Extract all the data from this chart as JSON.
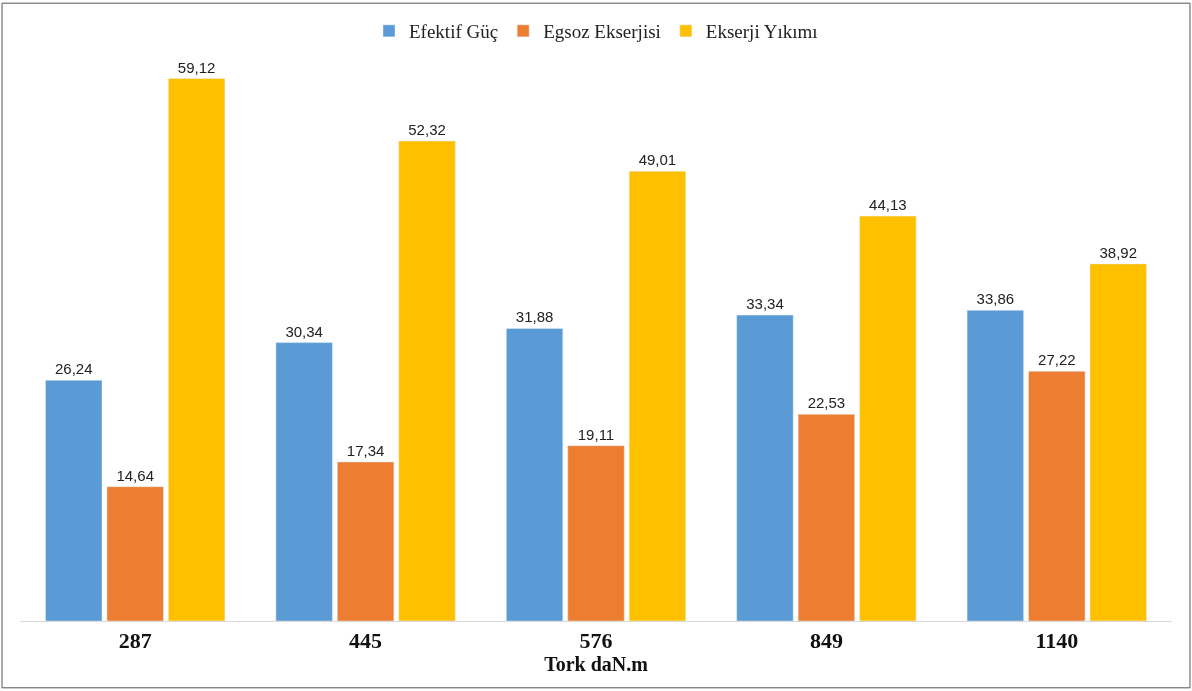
{
  "chart_data": {
    "type": "bar",
    "xlabel": "Tork daN.m",
    "categories": [
      "287",
      "445",
      "576",
      "849",
      "1140"
    ],
    "series": [
      {
        "name": "Efektif Güç",
        "color": "#5b9bd5",
        "values": [
          26.24,
          30.34,
          31.88,
          33.34,
          33.86
        ],
        "value_labels": [
          "26,24",
          "30,34",
          "31,88",
          "33,34",
          "33,86"
        ]
      },
      {
        "name": "Egsoz Ekserjisi",
        "color": "#ed7d31",
        "values": [
          14.64,
          17.34,
          19.11,
          22.53,
          27.22
        ],
        "value_labels": [
          "14,64",
          "17,34",
          "19,11",
          "22,53",
          "27,22"
        ]
      },
      {
        "name": "Ekserji Yıkımı",
        "color": "#ffc000",
        "values": [
          59.12,
          52.32,
          49.01,
          44.13,
          38.92
        ],
        "value_labels": [
          "59,12",
          "52,32",
          "49,01",
          "44,13",
          "38,92"
        ]
      }
    ],
    "tick_labels": "x",
    "legend": "top"
  }
}
